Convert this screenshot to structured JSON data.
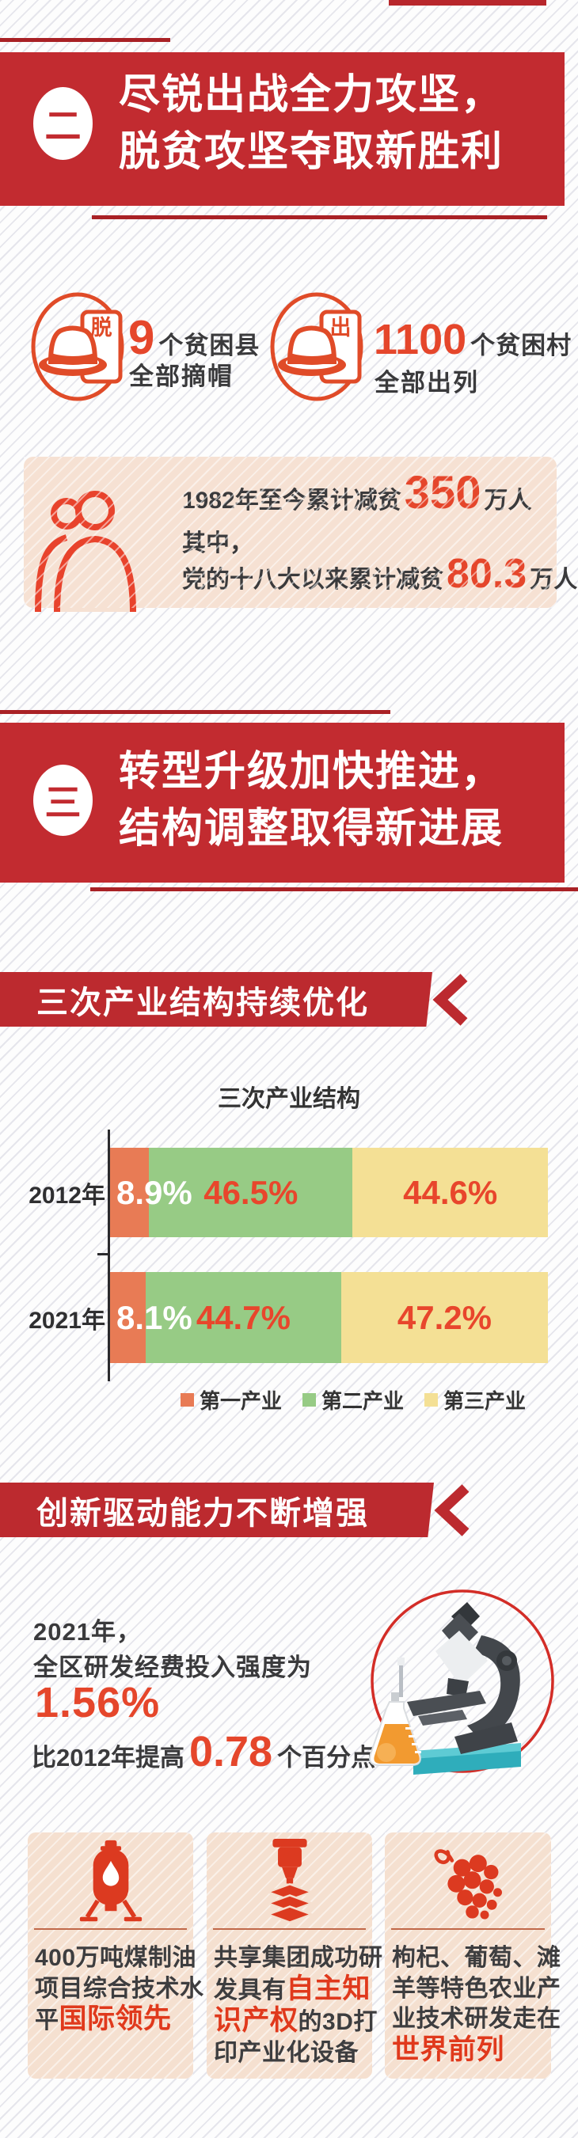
{
  "colors": {
    "banner_red": "#c22b30",
    "ribbon_red": "#bc2a2f",
    "rule_red": "#a92125",
    "accent_red": "#e5462b",
    "icon_red": "#dc3a20",
    "pink_bg": "#f6e1d3"
  },
  "s2": {
    "badge": "二",
    "title_lines": [
      "尽锐出战全力攻坚，",
      "脱贫攻坚夺取新胜利"
    ],
    "stats": [
      {
        "tag": "脱",
        "value": "9",
        "unit": "个贫困县",
        "line2": "全部摘帽"
      },
      {
        "tag": "出",
        "value": "1100",
        "unit": "个贫困村",
        "line2": "全部出列"
      }
    ],
    "reduction_box": {
      "line1_prefix": "1982年至今累计减贫",
      "line1_value": "350",
      "line1_suffix": "万人",
      "line2": "其中，",
      "line3_prefix": "党的十八大以来累计减贫",
      "line3_value": "80.3",
      "line3_suffix": "万人"
    }
  },
  "s3": {
    "badge": "三",
    "title_lines": [
      "转型升级加快推进，",
      "结构调整取得新进展"
    ],
    "ribbon1": "三次产业结构持续优化",
    "ribbon2": "创新驱动能力不断增强",
    "innovation": {
      "line1": "2021年，",
      "line2": "全区研发经费投入强度为",
      "value": "1.56%",
      "line3_prefix": "比2012年提高",
      "line3_value": "0.78",
      "line3_suffix": "个百分点"
    },
    "cards": [
      {
        "icon": "oil-tank-icon",
        "lines": [
          [
            {
              "t": "400万吨煤制油"
            }
          ],
          [
            {
              "t": "项目综合技术水"
            }
          ],
          [
            {
              "t": "平"
            },
            {
              "t": "国际领先",
              "a": true
            }
          ]
        ]
      },
      {
        "icon": "3d-printer-icon",
        "lines": [
          [
            {
              "t": "共享集团成功研"
            }
          ],
          [
            {
              "t": "发具有"
            },
            {
              "t": "自主知",
              "a": true
            }
          ],
          [
            {
              "t": "识产权",
              "a": true
            },
            {
              "t": "的3D打"
            }
          ],
          [
            {
              "t": "印产业化设备"
            }
          ]
        ]
      },
      {
        "icon": "grapes-icon",
        "lines": [
          [
            {
              "t": "枸杞、葡萄、滩"
            }
          ],
          [
            {
              "t": "羊等特色农业产"
            }
          ],
          [
            {
              "t": "业技术研发走在"
            }
          ],
          [
            {
              "t": "世界前列",
              "a": true
            }
          ]
        ]
      }
    ]
  },
  "chart_data": {
    "type": "bar",
    "stacked": true,
    "orientation": "horizontal",
    "title": "三次产业结构",
    "categories": [
      "2012年",
      "2021年"
    ],
    "series": [
      {
        "name": "第一产业",
        "color": "#e87b55",
        "values": [
          8.9,
          8.1
        ]
      },
      {
        "name": "第二产业",
        "color": "#97cb85",
        "values": [
          46.5,
          44.7
        ]
      },
      {
        "name": "第三产业",
        "color": "#f4e095",
        "values": [
          44.6,
          47.2
        ]
      }
    ],
    "value_suffix": "%",
    "xlim": [
      0,
      100
    ],
    "grid": false,
    "legend_position": "bottom"
  }
}
